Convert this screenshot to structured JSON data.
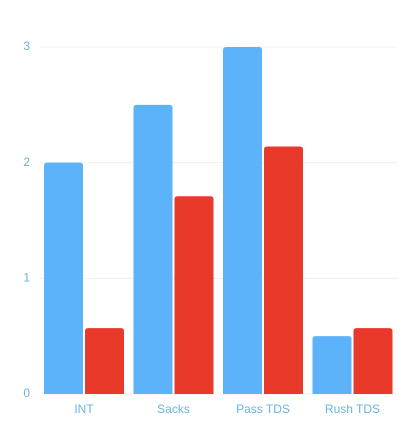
{
  "chart_data": {
    "type": "bar",
    "categories": [
      "INT",
      "Sacks",
      "Pass TDS",
      "Rush TDS"
    ],
    "series": [
      {
        "color": "#5cb3f9",
        "values": [
          2,
          2.5,
          3,
          0.5
        ]
      },
      {
        "color": "#e8392b",
        "values": [
          0.57,
          1.71,
          2.14,
          0.57
        ]
      }
    ],
    "ylim": [
      0,
      3
    ],
    "yticks": [
      0,
      1,
      2,
      3
    ],
    "grid": true
  }
}
